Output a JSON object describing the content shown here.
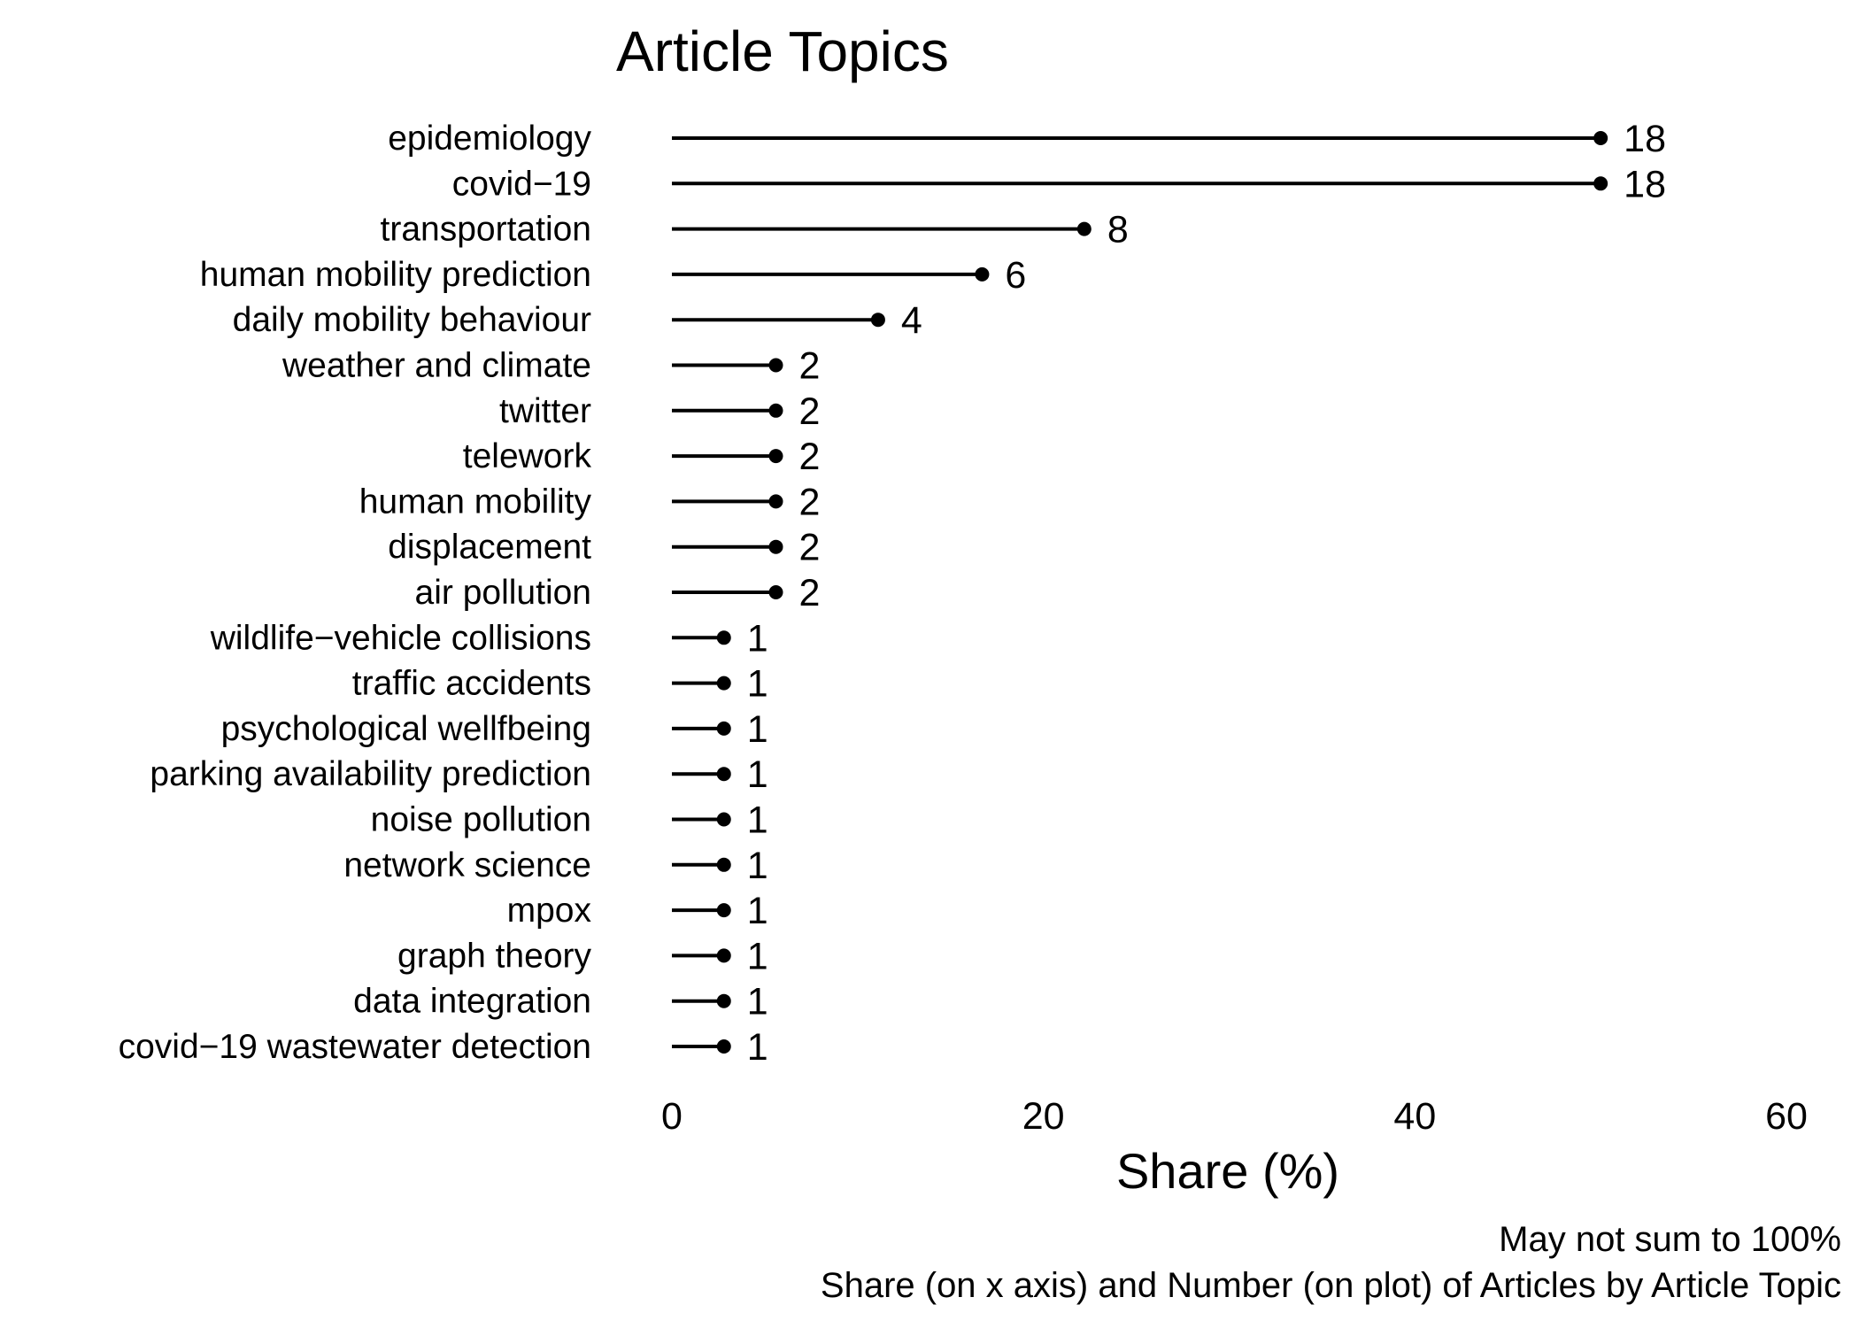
{
  "chart_data": {
    "type": "lollipop",
    "title": "Article Topics",
    "xlabel": "Share (%)",
    "ylabel": "",
    "xlim": [
      0,
      60
    ],
    "x_ticks": [
      0,
      20,
      40,
      60
    ],
    "categories": [
      "epidemiology",
      "covid−19",
      "transportation",
      "human mobility prediction",
      "daily mobility behaviour",
      "weather and climate",
      "twitter",
      "telework",
      "human mobility",
      "displacement",
      "air pollution",
      "wildlife−vehicle collisions",
      "traffic accidents",
      "psychological wellfbeing",
      "parking availability prediction",
      "noise pollution",
      "network science",
      "mpox",
      "graph theory",
      "data integration",
      "covid−19 wastewater detection"
    ],
    "counts": [
      18,
      18,
      8,
      6,
      4,
      2,
      2,
      2,
      2,
      2,
      2,
      1,
      1,
      1,
      1,
      1,
      1,
      1,
      1,
      1,
      1
    ],
    "share_percent": [
      50,
      50,
      22.2,
      16.7,
      11.1,
      5.6,
      5.6,
      5.6,
      5.6,
      5.6,
      5.6,
      2.8,
      2.8,
      2.8,
      2.8,
      2.8,
      2.8,
      2.8,
      2.8,
      2.8,
      2.8
    ],
    "grid": false,
    "legend": "none",
    "caption_lines": [
      "May not sum to 100%",
      "Share (on x axis) and Number (on plot) of Articles by Article Topic"
    ],
    "colors": {
      "line": "#000000",
      "point": "#000000",
      "text": "#000000",
      "background": "#ffffff"
    }
  }
}
